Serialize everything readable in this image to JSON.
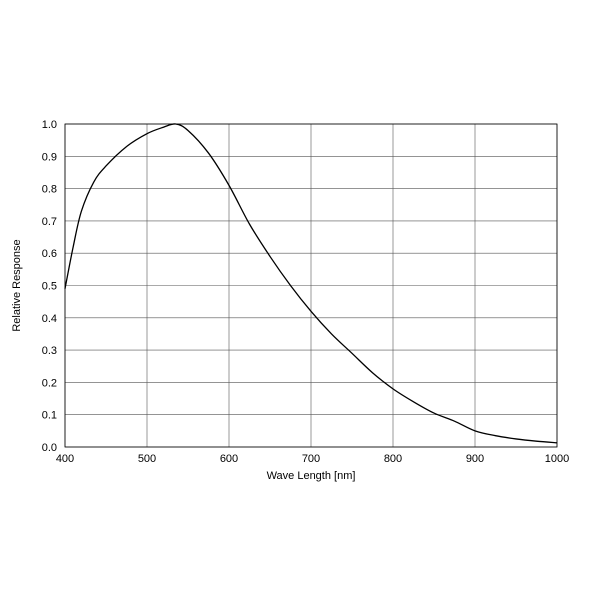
{
  "chart_data": {
    "type": "line",
    "xlabel": "Wave Length [nm]",
    "ylabel": "Relative Response",
    "xlim": [
      400,
      1000
    ],
    "ylim": [
      0.0,
      1.0
    ],
    "x_ticks": [
      "400",
      "500",
      "600",
      "700",
      "800",
      "900",
      "1000"
    ],
    "y_ticks": [
      "0.0",
      "0.1",
      "0.2",
      "0.3",
      "0.4",
      "0.5",
      "0.6",
      "0.7",
      "0.8",
      "0.9",
      "1.0"
    ],
    "grid": true,
    "legend": "none",
    "series": [
      {
        "color": "#000000",
        "x": [
          400,
          410,
          420,
          435,
          450,
          475,
          500,
          520,
          535,
          550,
          575,
          600,
          625,
          650,
          675,
          700,
          725,
          750,
          775,
          800,
          825,
          850,
          875,
          900,
          925,
          950,
          975,
          1000
        ],
        "y": [
          0.49,
          0.62,
          0.73,
          0.82,
          0.87,
          0.93,
          0.97,
          0.99,
          1.0,
          0.98,
          0.91,
          0.81,
          0.69,
          0.59,
          0.5,
          0.42,
          0.35,
          0.29,
          0.23,
          0.18,
          0.14,
          0.105,
          0.08,
          0.05,
          0.035,
          0.025,
          0.018,
          0.013
        ]
      }
    ]
  }
}
